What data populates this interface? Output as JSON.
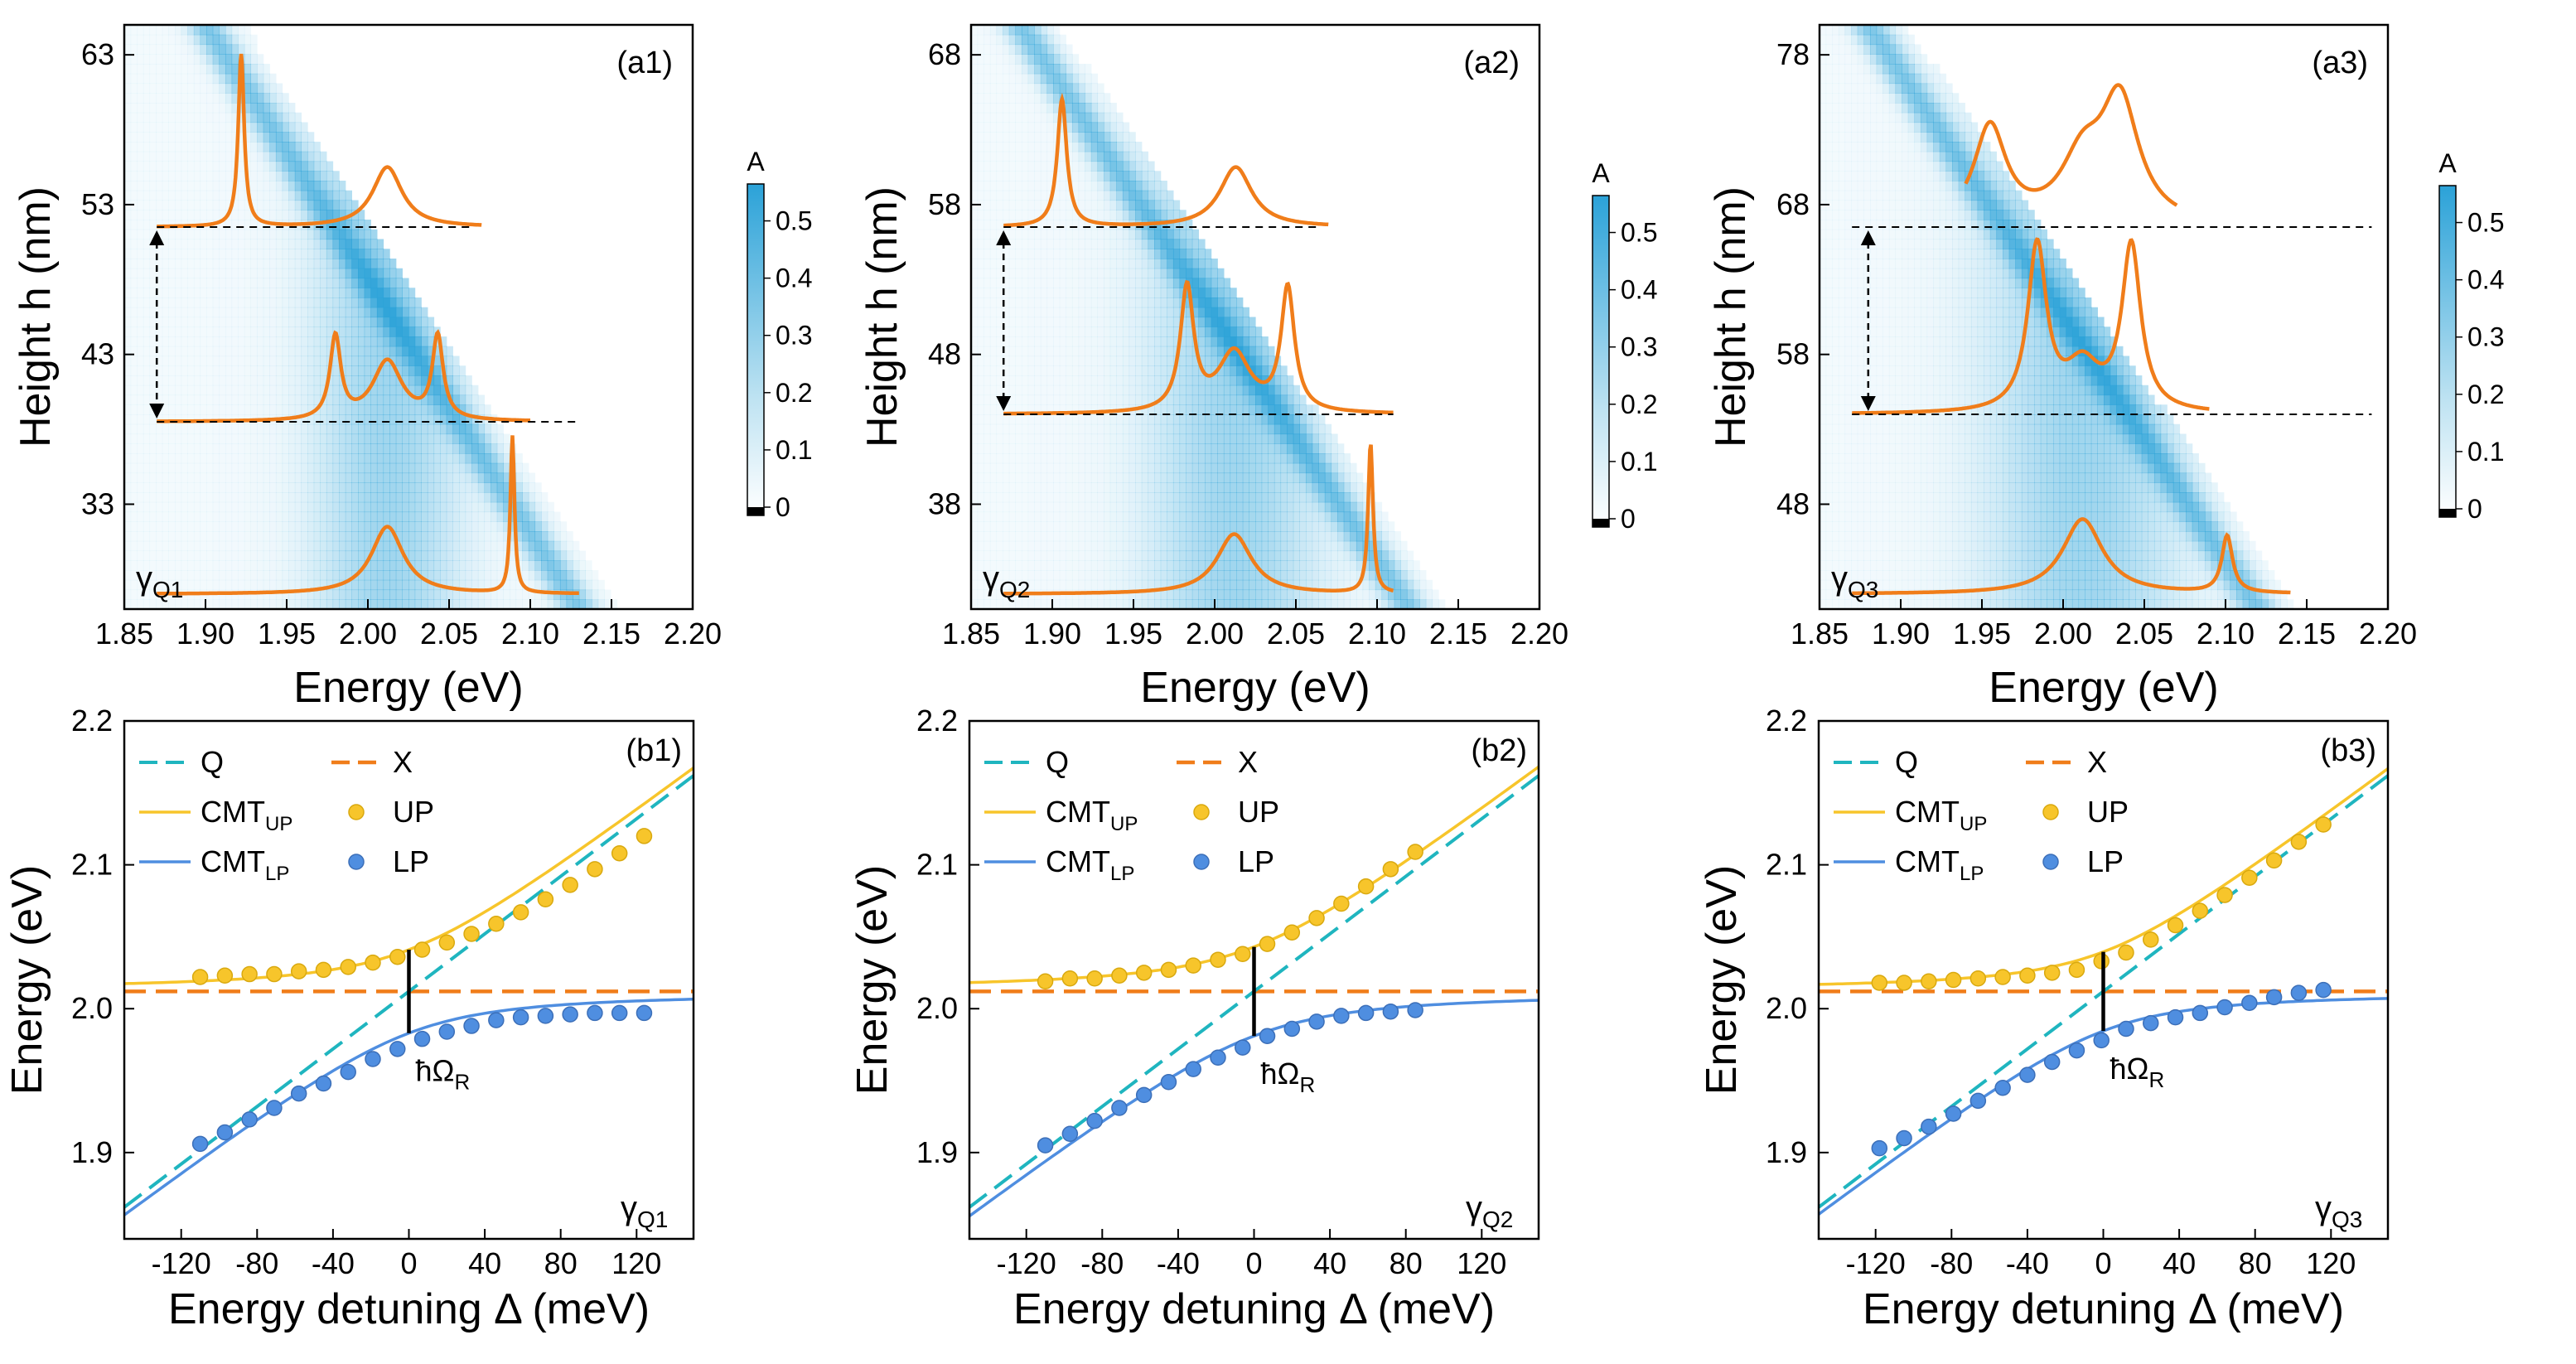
{
  "colors": {
    "cavity": "#1fb5bf",
    "exciton": "#f07d1a",
    "up": "#f7c52b",
    "lp": "#4f8ee0",
    "spectrum": "#f07d1a",
    "map": "#2ba2d8"
  },
  "chart_data": [
    {
      "id": "a1",
      "type": "heatmap",
      "panel_label": "(a1)",
      "gamma_label": "Q1",
      "xlabel": "Energy (eV)",
      "ylabel": "Height h (nm)",
      "xlim": [
        1.85,
        2.2
      ],
      "ylim": [
        26,
        65
      ],
      "xticks": [
        "1.85",
        "1.90",
        "1.95",
        "2.00",
        "2.05",
        "2.10",
        "2.15",
        "2.20"
      ],
      "yticks": [
        33,
        43,
        53,
        63
      ],
      "colorbar": {
        "title": "A",
        "ticks": [
          "0",
          "0.1",
          "0.2",
          "0.3",
          "0.4",
          "0.5"
        ],
        "range": [
          0,
          0.55
        ]
      },
      "exciton_energy": 2.012,
      "exciton_width": 0.03,
      "cavity_line": {
        "e_at_ymin": 2.13,
        "e_at_ymax": 1.9
      },
      "spectra": [
        {
          "baseline_h": 27,
          "peaks": [
            [
              2.012,
              0.012,
              4.5
            ],
            [
              2.089,
              0.0015,
              10.5
            ]
          ],
          "e_range": [
            1.87,
            2.13
          ]
        },
        {
          "baseline_h": 38.5,
          "peaks": [
            [
              1.98,
              0.004,
              5.5
            ],
            [
              2.012,
              0.011,
              4.0
            ],
            [
              2.043,
              0.004,
              5.5
            ]
          ],
          "e_range": [
            1.87,
            2.1
          ]
        },
        {
          "baseline_h": 51.5,
          "peaks": [
            [
              1.922,
              0.0022,
              11.5
            ],
            [
              2.012,
              0.011,
              4.0
            ]
          ],
          "e_range": [
            1.87,
            2.07
          ]
        }
      ],
      "dashed_lines_h": [
        38.5,
        51.5
      ],
      "arrow": {
        "e": 1.87,
        "h1": 38.5,
        "h2": 51.5
      }
    },
    {
      "id": "a2",
      "type": "heatmap",
      "panel_label": "(a2)",
      "gamma_label": "Q2",
      "xlabel": "Energy (eV)",
      "ylabel": "Height h (nm)",
      "xlim": [
        1.85,
        2.2
      ],
      "ylim": [
        31,
        70
      ],
      "xticks": [
        "1.85",
        "1.90",
        "1.95",
        "2.00",
        "2.05",
        "2.10",
        "2.15",
        "2.20"
      ],
      "yticks": [
        38,
        48,
        58,
        68
      ],
      "colorbar": {
        "title": "A",
        "ticks": [
          "0",
          "0.1",
          "0.2",
          "0.3",
          "0.4",
          "0.5"
        ],
        "range": [
          0,
          0.55
        ]
      },
      "exciton_energy": 2.012,
      "exciton_width": 0.035,
      "cavity_line": {
        "e_at_ymin": 2.12,
        "e_at_ymax": 1.88
      },
      "spectra": [
        {
          "baseline_h": 32,
          "peaks": [
            [
              2.012,
              0.013,
              4.0
            ],
            [
              2.096,
              0.0018,
              10.0
            ]
          ],
          "e_range": [
            1.87,
            2.11
          ]
        },
        {
          "baseline_h": 44,
          "peaks": [
            [
              1.983,
              0.005,
              8.2
            ],
            [
              2.012,
              0.012,
              4.0
            ],
            [
              2.045,
              0.005,
              8.2
            ]
          ],
          "e_range": [
            1.87,
            2.11
          ]
        },
        {
          "baseline_h": 56.5,
          "peaks": [
            [
              1.906,
              0.0035,
              8.5
            ],
            [
              2.013,
              0.012,
              4.0
            ]
          ],
          "e_range": [
            1.87,
            2.07
          ]
        }
      ],
      "dashed_lines_h": [
        44,
        56.5
      ],
      "arrow": {
        "e": 1.87,
        "h1": 44,
        "h2": 56.5
      }
    },
    {
      "id": "a3",
      "type": "heatmap",
      "panel_label": "(a3)",
      "gamma_label": "Q3",
      "xlabel": "Energy (eV)",
      "ylabel": "Height h (nm)",
      "xlim": [
        1.85,
        2.2
      ],
      "ylim": [
        41,
        80
      ],
      "xticks": [
        "1.85",
        "1.90",
        "1.95",
        "2.00",
        "2.05",
        "2.10",
        "2.15",
        "2.20"
      ],
      "yticks": [
        48,
        58,
        68,
        78
      ],
      "colorbar": {
        "title": "A",
        "ticks": [
          "0",
          "0.1",
          "0.2",
          "0.3",
          "0.4",
          "0.5"
        ],
        "range": [
          0,
          0.55
        ]
      },
      "exciton_energy": 2.012,
      "exciton_width": 0.04,
      "cavity_line": {
        "e_at_ymin": 2.12,
        "e_at_ymax": 1.88
      },
      "spectra": [
        {
          "baseline_h": 42,
          "peaks": [
            [
              2.012,
              0.015,
              5.0
            ],
            [
              2.101,
              0.004,
              3.8
            ]
          ],
          "e_range": [
            1.87,
            2.14
          ]
        },
        {
          "baseline_h": 54,
          "peaks": [
            [
              1.984,
              0.007,
              11.0
            ],
            [
              2.012,
              0.013,
              3.0
            ],
            [
              2.042,
              0.007,
              11.0
            ]
          ],
          "e_range": [
            1.87,
            2.09
          ]
        },
        {
          "baseline_h": 66.5,
          "peaks": [
            [
              1.955,
              0.012,
              6.5
            ],
            [
              2.012,
              0.016,
              4.0
            ],
            [
              2.035,
              0.014,
              8.0
            ]
          ],
          "e_range": [
            1.94,
            2.07
          ]
        }
      ],
      "dashed_lines_h": [
        54,
        66.5
      ],
      "arrow": {
        "e": 1.88,
        "h1": 54,
        "h2": 66.5
      }
    },
    {
      "id": "b1",
      "type": "line",
      "panel_label": "(b1)",
      "gamma_label": "Q1",
      "rabi_label": "R",
      "xlabel": "Energy detuning Δ (meV)",
      "ylabel": "Energy (eV)",
      "xlim": [
        -150,
        150
      ],
      "ylim": [
        1.84,
        2.2
      ],
      "xticks": [
        -120,
        -80,
        -40,
        0,
        40,
        80,
        120
      ],
      "yticks": [
        "1.9",
        "2.0",
        "2.1",
        "2.2"
      ],
      "legend": [
        "Q",
        "X",
        "CMT",
        "UP",
        "CMT",
        "LP"
      ],
      "legend_sub": [
        "UP",
        "LP"
      ],
      "exciton_energy": 2.012,
      "rabi_splitting_meV": 58,
      "UP": {
        "x": [
          -110,
          -97,
          -84,
          -71,
          -58,
          -45,
          -32,
          -19,
          -6,
          7,
          20,
          33,
          46,
          59,
          72,
          85,
          98,
          111,
          124
        ],
        "y": [
          2.022,
          2.023,
          2.024,
          2.024,
          2.026,
          2.027,
          2.029,
          2.032,
          2.036,
          2.041,
          2.046,
          2.052,
          2.059,
          2.067,
          2.076,
          2.086,
          2.097,
          2.108,
          2.12
        ]
      },
      "LP": {
        "x": [
          -110,
          -97,
          -84,
          -71,
          -58,
          -45,
          -32,
          -19,
          -6,
          7,
          20,
          33,
          46,
          59,
          72,
          85,
          98,
          111,
          124
        ],
        "y": [
          1.906,
          1.914,
          1.923,
          1.931,
          1.941,
          1.948,
          1.956,
          1.965,
          1.972,
          1.979,
          1.984,
          1.988,
          1.992,
          1.994,
          1.995,
          1.996,
          1.997,
          1.997,
          1.997
        ]
      }
    },
    {
      "id": "b2",
      "type": "line",
      "panel_label": "(b2)",
      "gamma_label": "Q2",
      "rabi_label": "R",
      "xlabel": "Energy detuning Δ (meV)",
      "ylabel": "Energy (eV)",
      "xlim": [
        -150,
        150
      ],
      "ylim": [
        1.84,
        2.2
      ],
      "xticks": [
        -120,
        -80,
        -40,
        0,
        40,
        80,
        120
      ],
      "yticks": [
        "1.9",
        "2.0",
        "2.1",
        "2.2"
      ],
      "legend": [
        "Q",
        "X",
        "CMT",
        "UP",
        "CMT",
        "LP"
      ],
      "legend_sub": [
        "UP",
        "LP"
      ],
      "exciton_energy": 2.012,
      "rabi_splitting_meV": 62,
      "UP": {
        "x": [
          -110,
          -97,
          -84,
          -71,
          -58,
          -45,
          -32,
          -19,
          -6,
          7,
          20,
          33,
          46,
          59,
          72,
          85
        ],
        "y": [
          2.019,
          2.021,
          2.021,
          2.023,
          2.025,
          2.027,
          2.03,
          2.034,
          2.038,
          2.045,
          2.053,
          2.063,
          2.073,
          2.085,
          2.097,
          2.109
        ]
      },
      "LP": {
        "x": [
          -110,
          -97,
          -84,
          -71,
          -58,
          -45,
          -32,
          -19,
          -6,
          7,
          20,
          33,
          46,
          59,
          72,
          85
        ],
        "y": [
          1.905,
          1.913,
          1.922,
          1.931,
          1.94,
          1.949,
          1.958,
          1.966,
          1.973,
          1.981,
          1.986,
          1.991,
          1.995,
          1.997,
          1.998,
          1.999
        ]
      }
    },
    {
      "id": "b3",
      "type": "line",
      "panel_label": "(b3)",
      "gamma_label": "Q3",
      "rabi_label": "R",
      "xlabel": "Energy detuning Δ (meV)",
      "ylabel": "Energy (eV)",
      "xlim": [
        -150,
        150
      ],
      "ylim": [
        1.84,
        2.2
      ],
      "xticks": [
        -120,
        -80,
        -40,
        0,
        40,
        80,
        120
      ],
      "yticks": [
        "1.9",
        "2.0",
        "2.1",
        "2.2"
      ],
      "legend": [
        "Q",
        "X",
        "CMT",
        "UP",
        "CMT",
        "LP"
      ],
      "legend_sub": [
        "UP",
        "LP"
      ],
      "exciton_energy": 2.012,
      "rabi_splitting_meV": 55,
      "UP": {
        "x": [
          -118,
          -105,
          -92,
          -79,
          -66,
          -53,
          -40,
          -27,
          -14,
          -1,
          12,
          25,
          38,
          51,
          64,
          77,
          90,
          103,
          116
        ],
        "y": [
          2.018,
          2.018,
          2.019,
          2.02,
          2.021,
          2.022,
          2.023,
          2.025,
          2.027,
          2.033,
          2.039,
          2.048,
          2.058,
          2.068,
          2.079,
          2.091,
          2.103,
          2.116,
          2.128
        ]
      },
      "LP": {
        "x": [
          -118,
          -105,
          -92,
          -79,
          -66,
          -53,
          -40,
          -27,
          -14,
          -1,
          12,
          25,
          38,
          51,
          64,
          77,
          90,
          103,
          116
        ],
        "y": [
          1.903,
          1.91,
          1.918,
          1.927,
          1.936,
          1.945,
          1.954,
          1.963,
          1.971,
          1.978,
          1.986,
          1.99,
          1.994,
          1.997,
          2.001,
          2.004,
          2.008,
          2.011,
          2.013
        ]
      }
    }
  ]
}
